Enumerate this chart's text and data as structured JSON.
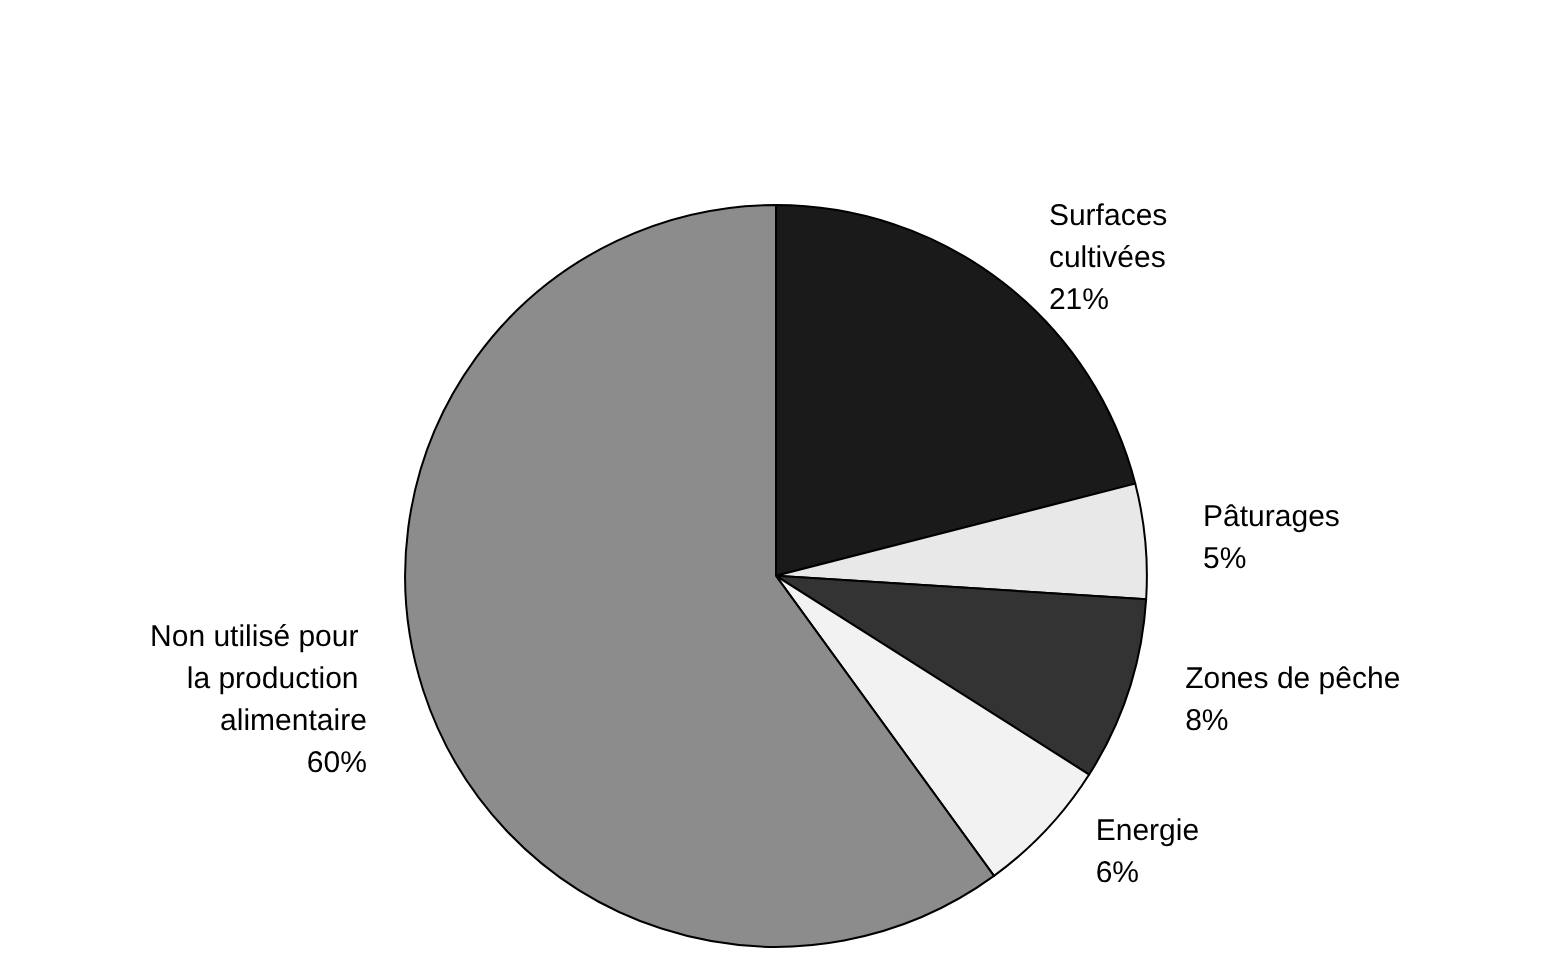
{
  "chart_data": {
    "type": "pie",
    "categories": [
      "Surfaces cultivées",
      "Pâturages",
      "Zones de pêche",
      "Energie",
      "Non utilisé pour la production alimentaire"
    ],
    "values": [
      21,
      5,
      8,
      6,
      60
    ],
    "value_labels": [
      "21%",
      "5%",
      "8%",
      "6%",
      "60%"
    ],
    "colors": [
      "#1a1a1a",
      "#e8e8e8",
      "#333333",
      "#f2f2f2",
      "#8c8c8c"
    ],
    "legend": false
  }
}
